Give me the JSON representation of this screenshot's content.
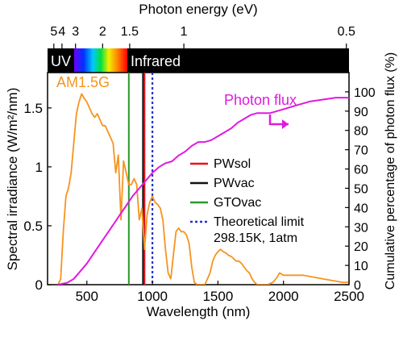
{
  "chart_data": {
    "type": "line",
    "xlabel": "Wavelength (nm)",
    "ylabel_left": "Spectral irradiance (W/m²/nm)",
    "ylabel_right": "Cumulative percentage of photon flux (%)",
    "xlabel_top": "Photon energy (eV)",
    "xlim": [
      200,
      2500
    ],
    "ylim_left": [
      0,
      1.8
    ],
    "ylim_right": [
      0,
      110
    ],
    "x_ticks": [
      500,
      1000,
      1500,
      2000,
      2500
    ],
    "y_ticks_left": [
      0,
      0.5,
      1,
      1.5
    ],
    "y_ticks_left_labels": [
      "0",
      "0.5",
      "1",
      "1.5"
    ],
    "y_ticks_right": [
      0,
      10,
      20,
      30,
      40,
      50,
      60,
      70,
      80,
      90,
      100
    ],
    "top_ticks": [
      {
        "label": "5",
        "ev": 5
      },
      {
        "label": "4",
        "ev": 4
      },
      {
        "label": "3",
        "ev": 3
      },
      {
        "label": "2",
        "ev": 2
      },
      {
        "label": "1.5",
        "ev": 1.5
      },
      {
        "label": "1",
        "ev": 1
      },
      {
        "label": "0.5",
        "ev": 0.5
      }
    ],
    "band": {
      "uv_label": "UV",
      "ir_label": "Infrared"
    },
    "series_labels": {
      "am15g": "AM1.5G",
      "flux": "Photon flux"
    },
    "am15g": {
      "x": [
        280,
        300,
        320,
        340,
        360,
        380,
        400,
        420,
        440,
        460,
        480,
        500,
        520,
        540,
        560,
        580,
        600,
        620,
        640,
        660,
        680,
        700,
        720,
        740,
        760,
        780,
        800,
        820,
        840,
        860,
        880,
        900,
        920,
        940,
        960,
        980,
        1000,
        1020,
        1040,
        1060,
        1080,
        1100,
        1120,
        1140,
        1160,
        1180,
        1200,
        1220,
        1240,
        1260,
        1280,
        1300,
        1320,
        1340,
        1360,
        1380,
        1400,
        1420,
        1440,
        1460,
        1480,
        1500,
        1520,
        1540,
        1560,
        1580,
        1600,
        1620,
        1640,
        1660,
        1680,
        1700,
        1720,
        1740,
        1760,
        1780,
        1800,
        1820,
        1850,
        1880,
        1900,
        1920,
        1950,
        1970,
        2000,
        2050,
        2100,
        2150,
        2200,
        2250,
        2300,
        2350,
        2400,
        2450,
        2500
      ],
      "y": [
        0,
        0.05,
        0.45,
        0.75,
        0.82,
        0.95,
        1.2,
        1.45,
        1.55,
        1.62,
        1.58,
        1.55,
        1.5,
        1.45,
        1.42,
        1.45,
        1.4,
        1.35,
        1.35,
        1.3,
        1.25,
        1.2,
        0.95,
        1.1,
        0.55,
        1.05,
        0.95,
        0.85,
        0.85,
        0.9,
        0.85,
        0.55,
        0.65,
        0.3,
        0.6,
        0.7,
        0.75,
        0.7,
        0.68,
        0.65,
        0.55,
        0.3,
        0.1,
        0.05,
        0.25,
        0.45,
        0.48,
        0.45,
        0.45,
        0.42,
        0.35,
        0.15,
        0.02,
        0,
        0,
        0,
        0,
        0.05,
        0.1,
        0.2,
        0.25,
        0.28,
        0.3,
        0.28,
        0.27,
        0.25,
        0.24,
        0.22,
        0.2,
        0.2,
        0.18,
        0.15,
        0.12,
        0.1,
        0.05,
        0.02,
        0,
        0,
        0,
        0,
        0.01,
        0.02,
        0.06,
        0.1,
        0.08,
        0.08,
        0.08,
        0.08,
        0.07,
        0.06,
        0.05,
        0.04,
        0.03,
        0.02,
        0.02
      ]
    },
    "photon_flux": {
      "x": [
        280,
        350,
        400,
        450,
        500,
        550,
        600,
        650,
        700,
        750,
        800,
        850,
        900,
        950,
        1000,
        1050,
        1100,
        1150,
        1200,
        1250,
        1300,
        1350,
        1400,
        1450,
        1500,
        1550,
        1600,
        1650,
        1700,
        1750,
        1800,
        1850,
        1900,
        1950,
        2000,
        2100,
        2200,
        2300,
        2400,
        2500
      ],
      "y": [
        0,
        1,
        3,
        7,
        11,
        16,
        21,
        26,
        31,
        36,
        41,
        46,
        50,
        54,
        58,
        61,
        63,
        64,
        67,
        69,
        72,
        74,
        74,
        75,
        77,
        79,
        81,
        84,
        86,
        88,
        89,
        89,
        89,
        90,
        91,
        93,
        95,
        96,
        97,
        97
      ]
    },
    "vlines": [
      {
        "name": "PWsol",
        "x": 940,
        "color": "#e8101e",
        "style": "solid"
      },
      {
        "name": "PWvac",
        "x": 928,
        "color": "#111111",
        "style": "solid"
      },
      {
        "name": "GTOvac",
        "x": 820,
        "color": "#2a9a2a",
        "style": "solid"
      },
      {
        "name": "Theoretical limit",
        "x": 1000,
        "color": "#2233cc",
        "style": "dotted"
      }
    ],
    "legend_extra": "298.15K, 1atm",
    "colors": {
      "am15g": "#f7931e",
      "flux": "#e019e0"
    }
  }
}
